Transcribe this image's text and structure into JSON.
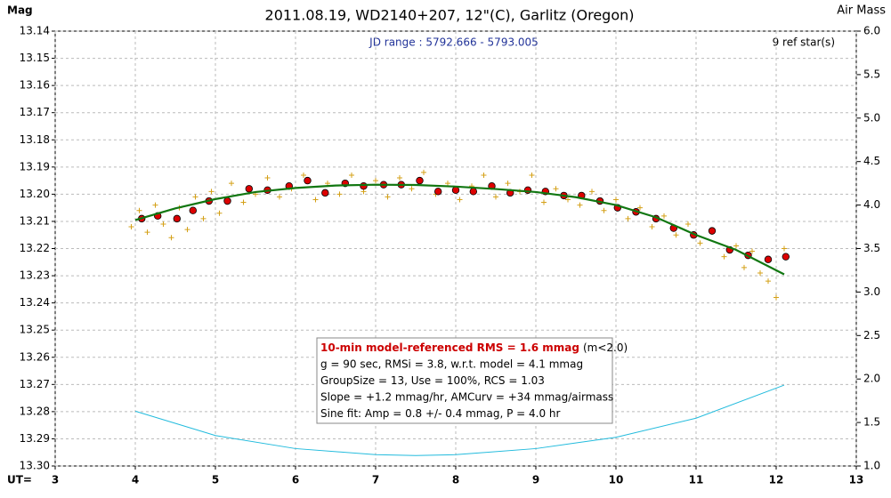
{
  "chart_data": {
    "type": "scatter",
    "title": "2011.08.19, WD2140+207, 12\"(C), Garlitz (Oregon)",
    "y_label": "Mag",
    "y2_label": "Air Mass",
    "x_label": "UT=",
    "subtitle": "JD range : 5792.666 - 5793.005",
    "ref_note": "9 ref star(s)",
    "annotation": {
      "headline": "10-min model-referenced RMS = 1.6 mmag",
      "headline_note": "(m<2.0)",
      "lines": [
        "g = 90 sec, RMSi = 3.8, w.r.t. model = 4.1 mmag",
        "GroupSize = 13, Use = 100%, RCS = 1.03",
        "Slope = +1.2 mmag/hr, AMCurv = +34 mmag/airmass",
        "Sine fit: Amp = 0.8 +/- 0.4 mmag, P = 4.0 hr"
      ]
    },
    "xlim": [
      3,
      13
    ],
    "xticks": [
      3,
      4,
      5,
      6,
      7,
      8,
      9,
      10,
      11,
      12,
      13
    ],
    "ylim": [
      13.3,
      13.14
    ],
    "yticks": [
      {
        "value": 13.3,
        "label": "13.30"
      },
      13.29,
      13.28,
      13.27,
      13.26,
      13.25,
      13.24,
      13.23,
      13.22,
      13.21,
      {
        "value": 13.2,
        "label": "13.20"
      },
      13.19,
      13.18,
      13.17,
      13.16,
      13.15,
      13.14
    ],
    "y2lim": [
      1,
      6
    ],
    "y2ticks": [
      {
        "value": 1,
        "label": "1.0"
      },
      1.5,
      {
        "value": 2,
        "label": "2.0"
      },
      2.5,
      {
        "value": 3,
        "label": "3.0"
      },
      3.5,
      {
        "value": 4,
        "label": "4.0"
      },
      4.5,
      {
        "value": 5,
        "label": "5.0"
      },
      5.5,
      {
        "value": 6,
        "label": "6.0"
      }
    ],
    "grid": true,
    "series": [
      {
        "style": "plus",
        "color": "#d4a017",
        "x": [
          3.95,
          4.05,
          4.15,
          4.25,
          4.35,
          4.45,
          4.55,
          4.65,
          4.75,
          4.85,
          4.95,
          5.05,
          5.2,
          5.35,
          5.5,
          5.65,
          5.8,
          5.95,
          6.1,
          6.25,
          6.4,
          6.55,
          6.7,
          6.85,
          7.0,
          7.15,
          7.3,
          7.45,
          7.6,
          7.75,
          7.9,
          8.05,
          8.2,
          8.35,
          8.5,
          8.65,
          8.8,
          8.95,
          9.1,
          9.25,
          9.4,
          9.55,
          9.7,
          9.85,
          10.0,
          10.15,
          10.3,
          10.45,
          10.6,
          10.75,
          10.9,
          11.05,
          11.2,
          11.35,
          11.5,
          11.6,
          11.7,
          11.8,
          11.9,
          12.0,
          12.1
        ],
        "values": [
          13.212,
          13.206,
          13.214,
          13.204,
          13.211,
          13.216,
          13.205,
          13.213,
          13.201,
          13.209,
          13.199,
          13.207,
          13.196,
          13.203,
          13.2,
          13.194,
          13.201,
          13.198,
          13.193,
          13.202,
          13.196,
          13.2,
          13.193,
          13.199,
          13.195,
          13.201,
          13.194,
          13.198,
          13.192,
          13.2,
          13.196,
          13.202,
          13.197,
          13.193,
          13.201,
          13.196,
          13.199,
          13.193,
          13.203,
          13.198,
          13.202,
          13.204,
          13.199,
          13.206,
          13.202,
          13.209,
          13.205,
          13.212,
          13.208,
          13.215,
          13.211,
          13.218,
          13.214,
          13.223,
          13.219,
          13.227,
          13.221,
          13.229,
          13.232,
          13.238,
          13.22
        ]
      },
      {
        "style": "dot",
        "color": "#dd0000",
        "x": [
          4.08,
          4.28,
          4.52,
          4.72,
          4.92,
          5.15,
          5.42,
          5.65,
          5.92,
          6.15,
          6.37,
          6.62,
          6.85,
          7.1,
          7.32,
          7.55,
          7.78,
          8.0,
          8.22,
          8.45,
          8.68,
          8.9,
          9.12,
          9.35,
          9.57,
          9.8,
          10.02,
          10.25,
          10.5,
          10.72,
          10.97,
          11.2,
          11.42,
          11.65,
          11.9,
          12.12
        ],
        "values": [
          13.209,
          13.208,
          13.209,
          13.206,
          13.2025,
          13.2025,
          13.198,
          13.1985,
          13.197,
          13.195,
          13.1995,
          13.196,
          13.197,
          13.1965,
          13.1965,
          13.195,
          13.199,
          13.1985,
          13.199,
          13.197,
          13.1995,
          13.1985,
          13.199,
          13.2005,
          13.2005,
          13.2025,
          13.205,
          13.2065,
          13.209,
          13.2125,
          13.215,
          13.2135,
          13.2205,
          13.2225,
          13.224,
          13.223
        ]
      },
      {
        "style": "line",
        "color": "#117711",
        "x": [
          4.0,
          4.5,
          5,
          5.5,
          6,
          6.5,
          7,
          7.5,
          8,
          8.5,
          9,
          9.5,
          10,
          10.5,
          11,
          11.5,
          12.1
        ],
        "values": [
          13.2095,
          13.2052,
          13.2018,
          13.1992,
          13.1977,
          13.1968,
          13.1965,
          13.1966,
          13.1972,
          13.1981,
          13.1992,
          13.2011,
          13.204,
          13.2085,
          13.215,
          13.2205,
          13.2295
        ]
      },
      {
        "style": "line",
        "color": "#22bbdd",
        "axis": "y2",
        "x": [
          4.0,
          5,
          6,
          7,
          7.5,
          8,
          9,
          10,
          11,
          12.1
        ],
        "values": [
          1.63,
          1.35,
          1.2,
          1.13,
          1.12,
          1.13,
          1.2,
          1.33,
          1.55,
          1.93
        ]
      }
    ]
  }
}
